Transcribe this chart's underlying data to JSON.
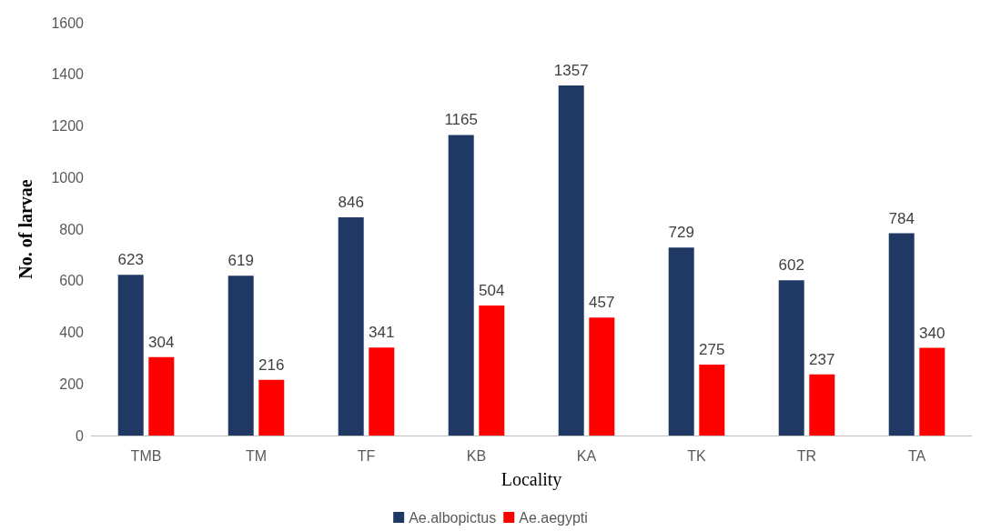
{
  "chart_data": {
    "type": "bar",
    "xlabel": "Locality",
    "ylabel": "No. of larvae",
    "categories": [
      "TMB",
      "TM",
      "TF",
      "KB",
      "KA",
      "TK",
      "TR",
      "TA"
    ],
    "series": [
      {
        "name": "Ae.albopictus",
        "color": "#1f3864",
        "values": [
          623,
          619,
          846,
          1165,
          1357,
          729,
          602,
          784
        ]
      },
      {
        "name": "Ae.aegypti",
        "color": "#ff0000",
        "values": [
          304,
          216,
          341,
          504,
          457,
          275,
          237,
          340
        ]
      }
    ],
    "ylim": [
      0,
      1600
    ],
    "yticks": [
      0,
      200,
      400,
      600,
      800,
      1000,
      1200,
      1400,
      1600
    ],
    "grid": false,
    "legend": "bottom",
    "data_labels": true
  }
}
